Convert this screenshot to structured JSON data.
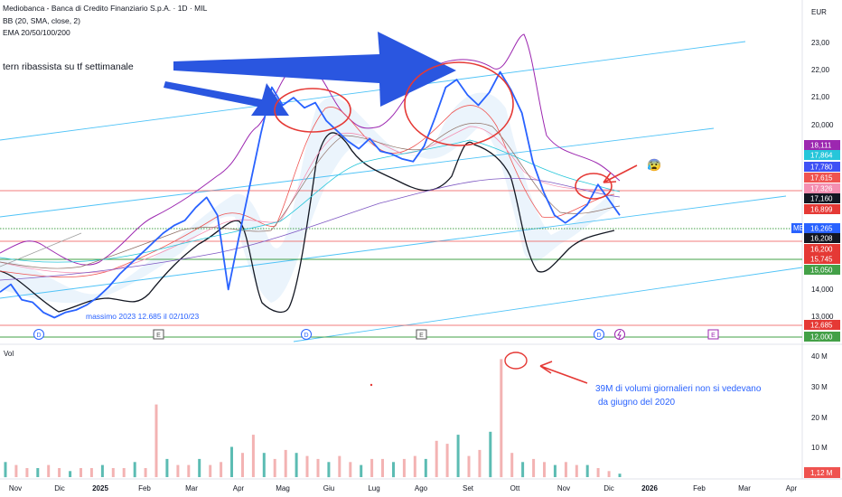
{
  "header": {
    "line1": "Mediobanca - Banca di Credito Finanziario S.p.A. · 1D · MIL",
    "line2": "BB (20, SMA, close, 2)",
    "line3": "EMA 20/50/100/200"
  },
  "annotations": {
    "pattern_text": "tern ribassista su tf settimanale",
    "max_text": "massimo  2023 12.685 il 02/10/23",
    "volume_note_line1": "39M di volumi giornalieri non si vedevano",
    "volume_note_line2": "da giugno del 2020",
    "emoji": "😰"
  },
  "chart_data": {
    "type": "line",
    "currency": "EUR",
    "volume_label": "Vol",
    "x_ticks": [
      "Nov",
      "Dic",
      "2025",
      "Feb",
      "Mar",
      "Apr",
      "Mag",
      "Giu",
      "Lug",
      "Ago",
      "Set",
      "Ott",
      "Nov",
      "Dic",
      "2026",
      "Feb",
      "Mar",
      "Apr"
    ],
    "price_ticks": [
      "23,00",
      "22,00",
      "21,00",
      "20,000",
      "14,000",
      "13,000"
    ],
    "volume_ticks": [
      "40 M",
      "30 M",
      "20 M",
      "10 M"
    ],
    "price_tags": [
      {
        "label": "18,111",
        "color": "#9c27b0"
      },
      {
        "label": "17,864",
        "color": "#26c6da"
      },
      {
        "label": "17,780",
        "color": "#3f51f5"
      },
      {
        "label": "17,615",
        "color": "#ef5350"
      },
      {
        "label": "17,326",
        "color": "#f48fb1"
      },
      {
        "label": "17,160",
        "color": "#131722"
      },
      {
        "label": "16,899",
        "color": "#e53935"
      },
      {
        "label": "16,265",
        "color": "#2962ff"
      },
      {
        "label": "16,208",
        "color": "#131722"
      },
      {
        "label": "16,200",
        "color": "#e53935"
      },
      {
        "label": "15,745",
        "color": "#e53935"
      },
      {
        "label": "15,050",
        "color": "#43a047"
      },
      {
        "label": "12,685",
        "color": "#e53935"
      },
      {
        "label": "12,000",
        "color": "#43a047"
      }
    ],
    "symbol_tag": "MB",
    "volume_tag": "1,12 M",
    "event_markers": [
      "D",
      "E",
      "D",
      "E",
      "D",
      "E"
    ],
    "close_series": [
      13.3,
      13.6,
      13.0,
      12.9,
      12.5,
      12.3,
      12.5,
      12.6,
      12.8,
      13.1,
      13.5,
      14.0,
      14.4,
      14.8,
      15.2,
      15.6,
      15.9,
      16.1,
      16.6,
      17.0,
      16.3,
      13.4,
      15.5,
      17.5,
      19.5,
      21.3,
      20.6,
      20.9,
      20.5,
      20.7,
      20.0,
      19.6,
      19.2,
      18.9,
      19.3,
      18.8,
      18.7,
      18.5,
      18.4,
      19.0,
      20.1,
      21.3,
      21.6,
      21.0,
      20.6,
      21.1,
      21.9,
      21.2,
      20.3,
      18.4,
      17.2,
      16.3,
      16.0,
      16.3,
      16.7,
      17.5,
      16.9,
      16.3
    ],
    "volume_series": [
      5,
      4,
      3,
      3,
      4,
      3,
      2,
      3,
      3,
      4,
      3,
      3,
      5,
      3,
      24,
      6,
      4,
      4,
      6,
      4,
      5,
      10,
      8,
      14,
      8,
      6,
      9,
      8,
      7,
      6,
      5,
      7,
      5,
      4,
      6,
      6,
      5,
      6,
      7,
      6,
      12,
      11,
      14,
      7,
      9,
      15,
      39,
      8,
      5,
      6,
      5,
      4,
      5,
      4,
      4,
      3,
      2,
      1.12
    ],
    "price_range": [
      12.0,
      23.3
    ],
    "volume_range": [
      0,
      40
    ]
  }
}
